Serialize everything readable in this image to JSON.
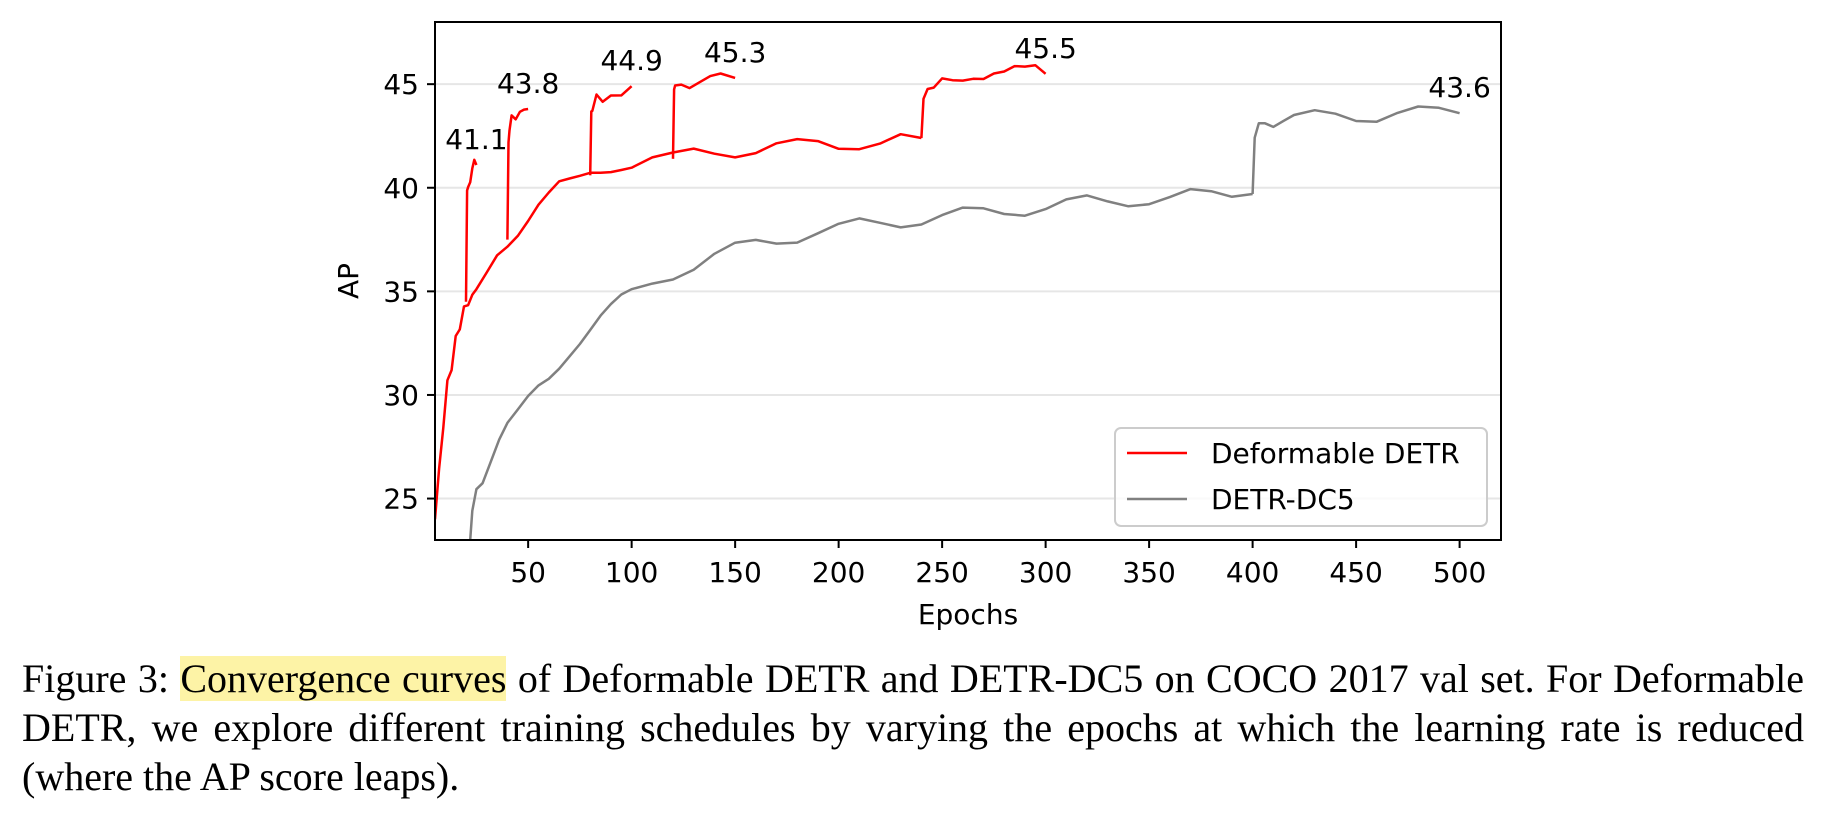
{
  "chart_data": {
    "type": "line",
    "xlabel": "Epochs",
    "ylabel": "AP",
    "xlim": [
      5,
      520
    ],
    "ylim": [
      23,
      48
    ],
    "xticks": [
      50,
      100,
      150,
      200,
      250,
      300,
      350,
      400,
      450,
      500
    ],
    "yticks": [
      25,
      30,
      35,
      40,
      45
    ],
    "grid": "horizontal",
    "legend_position": "bottom-right",
    "series": [
      {
        "name": "Deformable DETR",
        "color": "#ff0000",
        "segments": [
          {
            "x": [
              5,
              7,
              9,
              11,
              13,
              15,
              17,
              19,
              21,
              23,
              25,
              30,
              35,
              40,
              45,
              50,
              55,
              60,
              65,
              70,
              75,
              80,
              85,
              90,
              95,
              100,
              110,
              120,
              130,
              140,
              150,
              160,
              170,
              180,
              190,
              200,
              210,
              220,
              230,
              240
            ],
            "y": [
              24.0,
              26.5,
              28.5,
              30.5,
              31.5,
              32.5,
              33.5,
              34.0,
              34.5,
              34.8,
              35.0,
              36.0,
              37.0,
              37.5,
              38.0,
              38.6,
              39.2,
              39.6,
              40.0,
              40.1,
              40.3,
              40.6,
              40.8,
              41.0,
              41.2,
              41.3,
              41.5,
              41.4,
              41.6,
              41.7,
              41.8,
              41.9,
              42.0,
              42.0,
              42.1,
              42.1,
              42.2,
              42.2,
              42.3,
              42.4
            ]
          },
          {
            "x": [
              20,
              20.5,
              21,
              22,
              23,
              24,
              25
            ],
            "y": [
              34.5,
              39.8,
              40.2,
              40.6,
              40.9,
              41.0,
              41.1
            ]
          },
          {
            "x": [
              40,
              40.5,
              41,
              42,
              44,
              46,
              48,
              50
            ],
            "y": [
              37.5,
              42.5,
              42.9,
              43.2,
              43.5,
              43.6,
              43.7,
              43.8
            ]
          },
          {
            "x": [
              80,
              80.5,
              81,
              83,
              86,
              90,
              95,
              100
            ],
            "y": [
              40.6,
              43.8,
              44.0,
              44.3,
              44.5,
              44.7,
              44.8,
              44.9
            ]
          },
          {
            "x": [
              120,
              120.5,
              121,
              124,
              128,
              133,
              138,
              143,
              150
            ],
            "y": [
              41.4,
              44.4,
              44.7,
              44.9,
              45.0,
              45.1,
              45.2,
              45.2,
              45.3
            ]
          },
          {
            "x": [
              240,
              241,
              243,
              246,
              250,
              255,
              260,
              265,
              270,
              275,
              280,
              285,
              290,
              295,
              300
            ],
            "y": [
              42.4,
              44.4,
              44.8,
              45.1,
              45.3,
              45.4,
              45.5,
              45.6,
              45.5,
              45.6,
              45.5,
              45.6,
              45.5,
              45.6,
              45.5
            ]
          }
        ]
      },
      {
        "name": "DETR-DC5",
        "color": "#808080",
        "segments": [
          {
            "x": [
              22,
              23,
              25,
              28,
              32,
              36,
              40,
              45,
              50,
              55,
              60,
              65,
              70,
              75,
              80,
              85,
              90,
              95,
              100,
              110,
              120,
              130,
              140,
              150,
              160,
              170,
              180,
              190,
              200,
              210,
              220,
              230,
              240,
              250,
              260,
              270,
              280,
              290,
              300,
              310,
              320,
              330,
              340,
              350,
              360,
              370,
              380,
              390,
              400
            ],
            "y": [
              23.0,
              24.5,
              25.5,
              26.0,
              26.8,
              27.6,
              28.3,
              29.0,
              29.8,
              30.5,
              31.0,
              31.6,
              32.2,
              32.7,
              33.2,
              33.7,
              34.1,
              34.5,
              34.8,
              35.4,
              35.9,
              36.3,
              36.7,
              37.0,
              37.3,
              37.5,
              37.7,
              37.9,
              38.0,
              38.2,
              38.3,
              38.4,
              38.5,
              38.6,
              38.7,
              38.8,
              38.9,
              39.0,
              39.1,
              39.2,
              39.3,
              39.3,
              39.4,
              39.5,
              39.5,
              39.6,
              39.6,
              39.7,
              39.7
            ]
          },
          {
            "x": [
              400,
              401,
              403,
              406,
              410,
              415,
              420,
              430,
              440,
              450,
              460,
              470,
              480,
              490,
              500
            ],
            "y": [
              39.7,
              42.5,
              42.9,
              43.0,
              43.1,
              43.2,
              43.3,
              43.4,
              43.5,
              43.5,
              43.5,
              43.6,
              43.6,
              43.6,
              43.6
            ]
          }
        ]
      }
    ],
    "annotations": [
      {
        "text": "41.1",
        "x": 25,
        "y": 41.1
      },
      {
        "text": "43.8",
        "x": 50,
        "y": 43.8
      },
      {
        "text": "44.9",
        "x": 100,
        "y": 44.9
      },
      {
        "text": "45.3",
        "x": 150,
        "y": 45.3
      },
      {
        "text": "45.5",
        "x": 300,
        "y": 45.5
      },
      {
        "text": "43.6",
        "x": 500,
        "y": 43.6
      }
    ]
  },
  "caption": {
    "prefix": "Figure 3: ",
    "highlight": "Convergence curves",
    "rest": " of Deformable DETR and DETR-DC5 on COCO 2017 val set. For Deformable DETR, we explore different training schedules by varying the epochs at which the learning rate is reduced (where the AP score leaps)."
  }
}
